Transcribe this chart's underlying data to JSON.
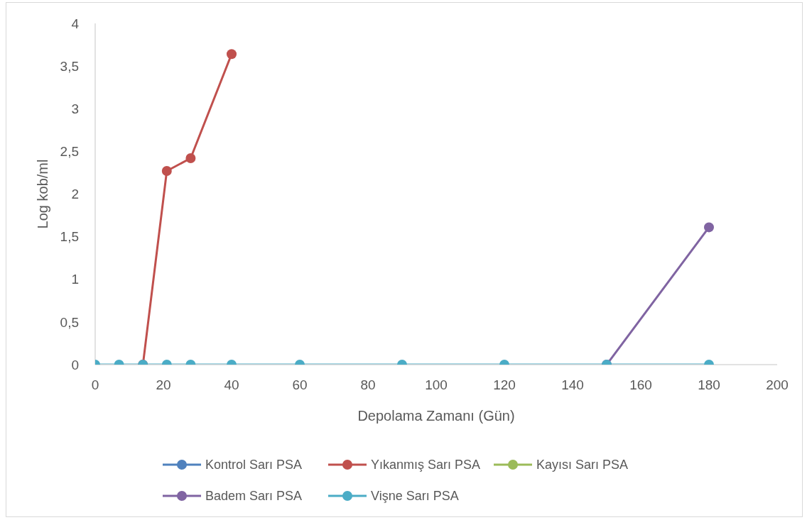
{
  "chart_data": {
    "type": "line",
    "xlabel": "Depolama Zamanı (Gün)",
    "ylabel": "Log kob/ml",
    "x": [
      0,
      7,
      14,
      21,
      28,
      40,
      60,
      90,
      120,
      150,
      180
    ],
    "xlim": [
      0,
      200
    ],
    "xticks": [
      0,
      20,
      40,
      60,
      80,
      100,
      120,
      140,
      160,
      180,
      200
    ],
    "ylim": [
      0,
      4
    ],
    "yticks": [
      0,
      {
        "value": 0.5,
        "label": "0,5"
      },
      1,
      {
        "value": 1.5,
        "label": "1,5"
      },
      2,
      {
        "value": 2.5,
        "label": "2,5"
      },
      3,
      {
        "value": 3.5,
        "label": "3,5"
      },
      4
    ],
    "legend": "bottom",
    "marker": "circle",
    "series": [
      {
        "name": "Kontrol Sarı PSA",
        "color": "#4f81bd",
        "values": [
          null,
          null,
          null,
          null,
          null,
          null,
          null,
          null,
          null,
          null,
          null
        ]
      },
      {
        "name": "Yıkanmış Sarı PSA",
        "color": "#c0504d",
        "values": [
          null,
          null,
          0,
          2.27,
          2.42,
          3.64,
          null,
          null,
          null,
          null,
          null
        ]
      },
      {
        "name": "Kayısı Sarı PSA",
        "color": "#9bbb59",
        "values": [
          null,
          null,
          null,
          null,
          null,
          null,
          null,
          null,
          null,
          null,
          null
        ]
      },
      {
        "name": "Badem Sarı PSA",
        "color": "#8064a2",
        "values": [
          null,
          null,
          null,
          null,
          null,
          null,
          null,
          null,
          null,
          0,
          1.61
        ]
      },
      {
        "name": "Vişne Sarı PSA",
        "color": "#4bacc6",
        "values": [
          0,
          0,
          0,
          0,
          0,
          0,
          0,
          0,
          0,
          0,
          0
        ]
      }
    ]
  }
}
